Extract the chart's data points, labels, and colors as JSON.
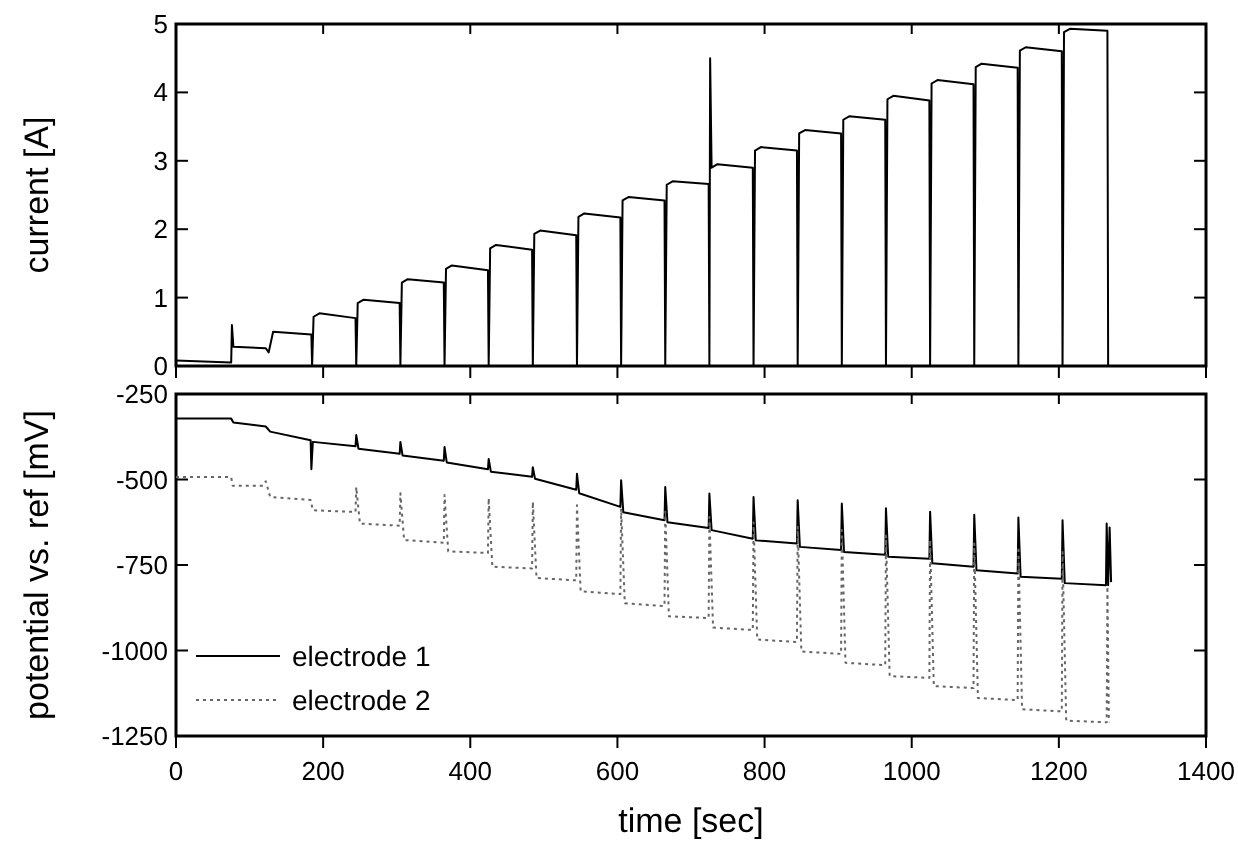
{
  "chart_data": [
    {
      "type": "line",
      "ylabel": "current [A]",
      "xlim": [
        0,
        1400
      ],
      "xticks": [
        0,
        200,
        400,
        600,
        800,
        1000,
        1200,
        1400
      ],
      "ylim": [
        0,
        5
      ],
      "yticks": [
        0,
        1,
        2,
        3,
        4,
        5
      ],
      "tick_labels": "y",
      "grid": false,
      "legend": false,
      "series": [
        {
          "color": "#000000",
          "line_style": "solid",
          "x": [
            0,
            75,
            76,
            78,
            122,
            126,
            132,
            184,
            185,
            187,
            195,
            244,
            245,
            247,
            255,
            304,
            305,
            307,
            315,
            364,
            365,
            367,
            375,
            424,
            425,
            427,
            435,
            484,
            485,
            487,
            495,
            544,
            545,
            547,
            555,
            604,
            605,
            607,
            615,
            664,
            665,
            667,
            675,
            724,
            725,
            726,
            728,
            736,
            784,
            785,
            787,
            795,
            844,
            845,
            847,
            855,
            904,
            905,
            907,
            915,
            964,
            965,
            967,
            975,
            1024,
            1025,
            1027,
            1035,
            1084,
            1085,
            1087,
            1095,
            1144,
            1145,
            1147,
            1155,
            1204,
            1205,
            1207,
            1215,
            1266,
            1267
          ],
          "values": [
            0.08,
            0.05,
            0.6,
            0.28,
            0.26,
            0.2,
            0.5,
            0.46,
            0,
            0.72,
            0.77,
            0.7,
            0,
            0.92,
            0.97,
            0.92,
            0,
            1.22,
            1.27,
            1.22,
            0,
            1.42,
            1.47,
            1.4,
            0,
            1.72,
            1.77,
            1.7,
            0,
            1.93,
            1.98,
            1.91,
            0,
            2.18,
            2.23,
            2.17,
            0,
            2.42,
            2.47,
            2.42,
            0,
            2.65,
            2.7,
            2.66,
            0,
            4.5,
            2.9,
            2.95,
            2.9,
            0,
            3.15,
            3.2,
            3.15,
            0,
            3.4,
            3.45,
            3.4,
            0,
            3.6,
            3.65,
            3.6,
            0,
            3.9,
            3.95,
            3.88,
            0,
            4.13,
            4.18,
            4.12,
            0,
            4.37,
            4.42,
            4.36,
            0,
            4.61,
            4.66,
            4.6,
            0,
            4.88,
            4.93,
            4.9,
            0
          ]
        }
      ]
    },
    {
      "type": "line",
      "xlabel": "time [sec]",
      "ylabel": "potential vs. ref [mV]",
      "xlim": [
        0,
        1400
      ],
      "xticks": [
        0,
        200,
        400,
        600,
        800,
        1000,
        1200,
        1400
      ],
      "ylim": [
        -1250,
        -250
      ],
      "yticks": [
        -250,
        -500,
        -750,
        -1000,
        -1250
      ],
      "grid": false,
      "legend": "bottom left",
      "series": [
        {
          "name": "electrode 1",
          "color": "#000000",
          "line_style": "solid",
          "x": [
            0,
            75,
            78,
            122,
            128,
            183,
            184,
            186,
            244,
            245,
            248,
            304,
            305,
            308,
            364,
            365,
            368,
            424,
            425,
            428,
            484,
            485,
            488,
            544,
            545,
            548,
            604,
            605,
            608,
            664,
            665,
            668,
            724,
            725,
            728,
            784,
            785,
            788,
            844,
            845,
            848,
            904,
            905,
            908,
            964,
            965,
            968,
            1024,
            1025,
            1028,
            1084,
            1085,
            1088,
            1144,
            1145,
            1148,
            1204,
            1205,
            1208,
            1264,
            1265,
            1267,
            1269,
            1271
          ],
          "values": [
            -322,
            -322,
            -333,
            -345,
            -360,
            -385,
            -470,
            -390,
            -403,
            -370,
            -410,
            -425,
            -390,
            -430,
            -445,
            -405,
            -450,
            -470,
            -440,
            -477,
            -492,
            -464,
            -498,
            -530,
            -483,
            -540,
            -580,
            -502,
            -596,
            -619,
            -522,
            -625,
            -642,
            -541,
            -648,
            -673,
            -551,
            -678,
            -687,
            -561,
            -697,
            -706,
            -570,
            -712,
            -720,
            -584,
            -726,
            -732,
            -594,
            -745,
            -755,
            -603,
            -765,
            -775,
            -611,
            -784,
            -790,
            -619,
            -803,
            -809,
            -629,
            -809,
            -640,
            -800
          ]
        },
        {
          "name": "electrode 2",
          "color": "#666666",
          "line_style": "dotted",
          "x": [
            0,
            75,
            77,
            118,
            122,
            128,
            183,
            186,
            244,
            245,
            250,
            304,
            305,
            310,
            364,
            365,
            370,
            424,
            425,
            430,
            484,
            485,
            490,
            544,
            545,
            550,
            604,
            605,
            610,
            664,
            665,
            670,
            724,
            725,
            730,
            784,
            785,
            790,
            844,
            845,
            850,
            904,
            905,
            910,
            964,
            965,
            970,
            1024,
            1025,
            1030,
            1084,
            1085,
            1090,
            1144,
            1145,
            1150,
            1204,
            1205,
            1210,
            1265,
            1266,
            1268
          ],
          "values": [
            -493,
            -493,
            -518,
            -518,
            -505,
            -551,
            -560,
            -590,
            -595,
            -522,
            -629,
            -635,
            -540,
            -677,
            -685,
            -545,
            -710,
            -715,
            -555,
            -755,
            -760,
            -565,
            -788,
            -795,
            -575,
            -827,
            -835,
            -585,
            -862,
            -870,
            -594,
            -900,
            -905,
            -610,
            -933,
            -940,
            -625,
            -968,
            -975,
            -638,
            -1003,
            -1010,
            -648,
            -1036,
            -1043,
            -664,
            -1075,
            -1080,
            -677,
            -1104,
            -1110,
            -687,
            -1139,
            -1145,
            -697,
            -1172,
            -1178,
            -712,
            -1205,
            -1210,
            -813,
            -1210
          ]
        }
      ]
    }
  ]
}
